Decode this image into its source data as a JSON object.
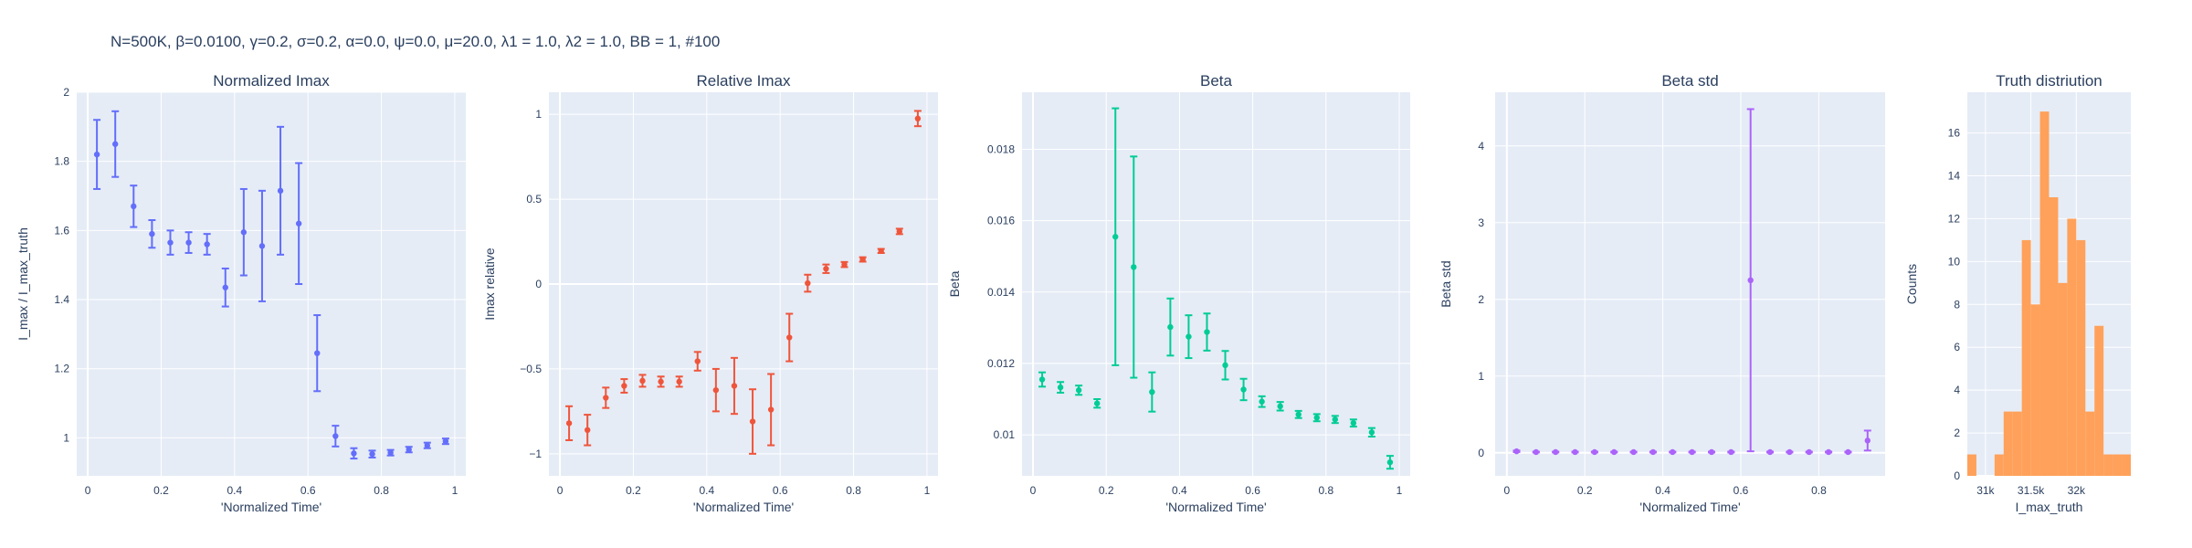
{
  "figure": {
    "suptitle": "N=500K, β=0.0100, γ=0.2, σ=0.2,  α=0.0, ψ=0.0, μ=20.0, λ1 = 1.0, λ2 = 1.0, BB = 1, #100"
  },
  "chart_data": [
    {
      "id": "normalized-imax",
      "type": "scatter",
      "title": "Normalized Imax",
      "xlabel": "'Normalized Time'",
      "ylabel": "I_max / I_max_truth",
      "color": "#636efa",
      "xlim": [
        -0.03,
        1.03
      ],
      "ylim": [
        0.89,
        2.0
      ],
      "xticks": [
        0,
        0.2,
        0.4,
        0.6,
        0.8,
        1
      ],
      "xticklabels": [
        "0",
        "0.2",
        "0.4",
        "0.6",
        "0.8",
        "1"
      ],
      "yticks": [
        1,
        1.2,
        1.4,
        1.6,
        1.8,
        2
      ],
      "yticklabels": [
        "1",
        "1.2",
        "1.4",
        "1.6",
        "1.8",
        "2"
      ],
      "series": [
        {
          "x": [
            0.025,
            0.075,
            0.125,
            0.175,
            0.225,
            0.275,
            0.325,
            0.375,
            0.425,
            0.475,
            0.525,
            0.575,
            0.625,
            0.675,
            0.725,
            0.775,
            0.825,
            0.875,
            0.925,
            0.975
          ],
          "y": [
            1.82,
            1.85,
            1.67,
            1.59,
            1.565,
            1.565,
            1.56,
            1.435,
            1.595,
            1.555,
            1.715,
            1.62,
            1.245,
            1.005,
            0.955,
            0.953,
            0.957,
            0.966,
            0.978,
            0.99
          ],
          "err": [
            0.1,
            0.095,
            0.06,
            0.04,
            0.035,
            0.03,
            0.03,
            0.055,
            0.125,
            0.16,
            0.185,
            0.175,
            0.11,
            0.03,
            0.015,
            0.01,
            0.008,
            0.008,
            0.008,
            0.008
          ]
        }
      ]
    },
    {
      "id": "relative-imax",
      "type": "scatter",
      "title": "Relative Imax",
      "xlabel": "'Normalized Time'",
      "ylabel": "Imax relative",
      "color": "#ef553b",
      "xlim": [
        -0.03,
        1.03
      ],
      "ylim": [
        -1.13,
        1.13
      ],
      "xticks": [
        0,
        0.2,
        0.4,
        0.6,
        0.8,
        1
      ],
      "xticklabels": [
        "0",
        "0.2",
        "0.4",
        "0.6",
        "0.8",
        "1"
      ],
      "yticks": [
        -1,
        -0.5,
        0,
        0.5,
        1
      ],
      "yticklabels": [
        "−1",
        "−0.5",
        "0",
        "0.5",
        "1"
      ],
      "series": [
        {
          "x": [
            0.025,
            0.075,
            0.125,
            0.175,
            0.225,
            0.275,
            0.325,
            0.375,
            0.425,
            0.475,
            0.525,
            0.575,
            0.625,
            0.675,
            0.725,
            0.775,
            0.825,
            0.875,
            0.925,
            0.975
          ],
          "y": [
            -0.82,
            -0.86,
            -0.67,
            -0.6,
            -0.57,
            -0.575,
            -0.575,
            -0.455,
            -0.625,
            -0.6,
            -0.81,
            -0.74,
            -0.315,
            0.005,
            0.09,
            0.115,
            0.145,
            0.195,
            0.31,
            0.975
          ],
          "err": [
            0.1,
            0.09,
            0.06,
            0.04,
            0.035,
            0.03,
            0.03,
            0.055,
            0.125,
            0.165,
            0.19,
            0.21,
            0.14,
            0.05,
            0.025,
            0.015,
            0.013,
            0.012,
            0.016,
            0.045
          ]
        }
      ]
    },
    {
      "id": "beta",
      "type": "scatter",
      "title": "Beta",
      "xlabel": "'Normalized Time'",
      "ylabel": "Beta",
      "color": "#00cc96",
      "xlim": [
        -0.03,
        1.03
      ],
      "ylim": [
        0.00885,
        0.0196
      ],
      "xticks": [
        0,
        0.2,
        0.4,
        0.6,
        0.8,
        1
      ],
      "xticklabels": [
        "0",
        "0.2",
        "0.4",
        "0.6",
        "0.8",
        "1"
      ],
      "yticks": [
        0.01,
        0.012,
        0.014,
        0.016,
        0.018
      ],
      "yticklabels": [
        "0.01",
        "0.012",
        "0.014",
        "0.016",
        "0.018"
      ],
      "series": [
        {
          "x": [
            0.025,
            0.075,
            0.125,
            0.175,
            0.225,
            0.275,
            0.325,
            0.375,
            0.425,
            0.475,
            0.525,
            0.575,
            0.625,
            0.675,
            0.725,
            0.775,
            0.825,
            0.875,
            0.925,
            0.975
          ],
          "y": [
            0.01155,
            0.01133,
            0.01125,
            0.01088,
            0.01555,
            0.0147,
            0.0112,
            0.01302,
            0.01275,
            0.01288,
            0.01195,
            0.01127,
            0.01093,
            0.0108,
            0.01057,
            0.01048,
            0.01043,
            0.01033,
            0.01007,
            0.00923
          ],
          "err": [
            0.0002,
            0.00015,
            0.00013,
            0.00012,
            0.0036,
            0.0031,
            0.00055,
            0.0008,
            0.0006,
            0.00052,
            0.0004,
            0.0003,
            0.00015,
            0.00012,
            0.0001,
            0.0001,
            0.0001,
            0.0001,
            0.00012,
            0.00018
          ]
        }
      ]
    },
    {
      "id": "beta-std",
      "type": "scatter",
      "title": "Beta std",
      "xlabel": "'Normalized Time'",
      "ylabel": "Beta std",
      "color": "#ab63fa",
      "xlim": [
        -0.03,
        0.97
      ],
      "ylim": [
        -0.3,
        4.7
      ],
      "xticks": [
        0,
        0.2,
        0.4,
        0.6,
        0.8
      ],
      "xticklabels": [
        "0",
        "0.2",
        "0.4",
        "0.6",
        "0.8"
      ],
      "yticks": [
        0,
        1,
        2,
        3,
        4
      ],
      "yticklabels": [
        "0",
        "1",
        "2",
        "3",
        "4"
      ],
      "series": [
        {
          "x": [
            0.025,
            0.075,
            0.125,
            0.175,
            0.225,
            0.275,
            0.325,
            0.375,
            0.425,
            0.475,
            0.525,
            0.575,
            0.625,
            0.675,
            0.725,
            0.775,
            0.825,
            0.875,
            0.925
          ],
          "y": [
            0.02,
            0.01,
            0.01,
            0.01,
            0.01,
            0.01,
            0.01,
            0.01,
            0.01,
            0.01,
            0.01,
            0.01,
            2.25,
            0.01,
            0.01,
            0.01,
            0.01,
            0.01,
            0.16
          ],
          "err": [
            0.01,
            0.005,
            0.005,
            0.005,
            0.005,
            0.005,
            0.005,
            0.005,
            0.005,
            0.005,
            0.005,
            0.005,
            2.23,
            0.005,
            0.005,
            0.005,
            0.005,
            0.005,
            0.13
          ]
        }
      ]
    },
    {
      "id": "truth-distribution",
      "type": "bar",
      "title": "Truth distriution",
      "xlabel": "I_max_truth",
      "ylabel": "Counts",
      "color": "#ffa15a",
      "xlim": [
        30800,
        32600
      ],
      "ylim": [
        0,
        17.9
      ],
      "xticks": [
        31000,
        31500,
        32000
      ],
      "xticklabels": [
        "31k",
        "31.5k",
        "32k"
      ],
      "yticks": [
        0,
        2,
        4,
        6,
        8,
        10,
        12,
        14,
        16
      ],
      "yticklabels": [
        "0",
        "2",
        "4",
        "6",
        "8",
        "10",
        "12",
        "14",
        "16"
      ],
      "bin_start": 30800,
      "bin_width": 100,
      "values": [
        1,
        0,
        0,
        1,
        3,
        3,
        11,
        8,
        17,
        13,
        9,
        12,
        11,
        3,
        7,
        1,
        1,
        1
      ]
    }
  ]
}
